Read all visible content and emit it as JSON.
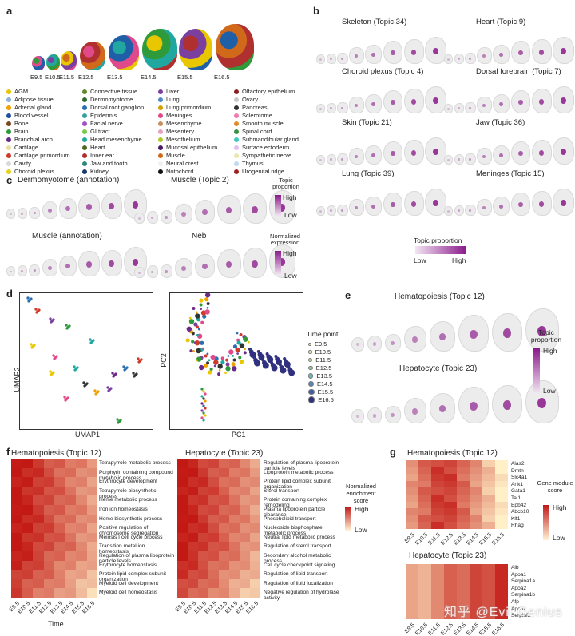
{
  "panels": {
    "a": "a",
    "b": "b",
    "c": "c",
    "d": "d",
    "e": "e",
    "f": "f",
    "g": "g"
  },
  "stages": [
    "E9.5",
    "E10.5",
    "E11.5",
    "E12.5",
    "E13.5",
    "E14.5",
    "E15.5",
    "E16.5"
  ],
  "tissue_legend": [
    {
      "label": "AGM",
      "color": "#e8c600"
    },
    {
      "label": "Connective tissue",
      "color": "#5c8a2e"
    },
    {
      "label": "Liver",
      "color": "#7b3fa0"
    },
    {
      "label": "Olfactory epithelium",
      "color": "#8b1e1e"
    },
    {
      "label": "Adipose tissue",
      "color": "#8ab3e0"
    },
    {
      "label": "Dermomyotome",
      "color": "#2e6b2e"
    },
    {
      "label": "Lung",
      "color": "#4e8ac8"
    },
    {
      "label": "Ovary",
      "color": "#c8c8c8"
    },
    {
      "label": "Adrenal gland",
      "color": "#f0a000"
    },
    {
      "label": "Dorsal root ganglion",
      "color": "#2a6fb0"
    },
    {
      "label": "Lung primordium",
      "color": "#d4a000"
    },
    {
      "label": "Pancreas",
      "color": "#333333"
    },
    {
      "label": "Blood vessel",
      "color": "#1f4fa0"
    },
    {
      "label": "Epidermis",
      "color": "#36a0a0"
    },
    {
      "label": "Meninges",
      "color": "#e04a8a"
    },
    {
      "label": "Sclerotome",
      "color": "#f07ab0"
    },
    {
      "label": "Bone",
      "color": "#7a4a1e"
    },
    {
      "label": "Facial nerve",
      "color": "#a050c8"
    },
    {
      "label": "Mesenchyme",
      "color": "#c89060"
    },
    {
      "label": "Smooth muscle",
      "color": "#e08a2a"
    },
    {
      "label": "Brain",
      "color": "#2f9a3a"
    },
    {
      "label": "GI tract",
      "color": "#7ac84a"
    },
    {
      "label": "Mesentery",
      "color": "#e8a0c0"
    },
    {
      "label": "Spinal cord",
      "color": "#3a9040"
    },
    {
      "label": "Branchial arch",
      "color": "#6a2a8a"
    },
    {
      "label": "Head mesenchyme",
      "color": "#20a8a0"
    },
    {
      "label": "Mesothelium",
      "color": "#b0c830"
    },
    {
      "label": "Submandibular gland",
      "color": "#40c8c0"
    },
    {
      "label": "Cartilage",
      "color": "#e8e0a0"
    },
    {
      "label": "Heart",
      "color": "#4a6a20"
    },
    {
      "label": "Mucosal epithelium",
      "color": "#4a1a6a"
    },
    {
      "label": "Surface ectoderm",
      "color": "#e0c0f0"
    },
    {
      "label": "Cartilage primordium",
      "color": "#d03a2a"
    },
    {
      "label": "Inner ear",
      "color": "#b03030"
    },
    {
      "label": "Muscle",
      "color": "#d06a1a"
    },
    {
      "label": "Sympathetic nerve",
      "color": "#e8e8b0"
    },
    {
      "label": "Cavity",
      "color": "#d8d8d8"
    },
    {
      "label": "Jaw and tooth",
      "color": "#2a8a7a"
    },
    {
      "label": "Neural crest",
      "color": "#f0f0f0"
    },
    {
      "label": "Thymus",
      "color": "#c0d8f0"
    },
    {
      "label": "Choroid plexus",
      "color": "#e8d020"
    },
    {
      "label": "Kidney",
      "color": "#1a3a6a"
    },
    {
      "label": "Notochord",
      "color": "#111111"
    },
    {
      "label": "Urogenital ridge",
      "color": "#a02020"
    }
  ],
  "b_titles": [
    "Skeleton (Topic 34)",
    "Heart (Topic 9)",
    "Choroid plexus (Topic 4)",
    "Dorsal forebrain (Topic 7)",
    "Skin (Topic 21)",
    "Jaw (Topic 36)",
    "Lung (Topic 39)",
    "Meninges (Topic 15)"
  ],
  "b_legend": {
    "title": "Topic proportion",
    "low": "Low",
    "high": "High"
  },
  "c": {
    "t1": "Dermomyotome (annotation)",
    "t2": "Muscle (Topic 2)",
    "t3": "Muscle (annotation)",
    "t4": "Neb",
    "leg1_title": "Topic proportion",
    "leg1_high": "High",
    "leg1_low": "Low",
    "leg2_title": "Normalized expression",
    "leg2_high": "High",
    "leg2_low": "Low"
  },
  "d": {
    "xlabel1": "UMAP1",
    "ylabel1": "UMAP2",
    "xlabel2": "PC1",
    "ylabel2": "PC2",
    "legend_title": "Time point"
  },
  "e": {
    "t1": "Hematopoiesis (Topic 12)",
    "t2": "Hepatocyte (Topic 23)",
    "leg_title": "Topic proportion",
    "high": "High",
    "low": "Low"
  },
  "f": {
    "t1": "Hematopoiesis (Topic 12)",
    "t2": "Hepatocyte (Topic 23)",
    "rows1": [
      "Tetrapyrrole metabolic process",
      "Porphyrin containing compound metabolic process",
      "Erythrocyte development",
      "Tetrapyrrole biosynthetic process",
      "Heme metabolic process",
      "Iron ion homeostasis",
      "Heme biosynthetic process",
      "Positive regulation of chromosome segregation",
      "Meiosis I cell cycle process",
      "Transition metal ion homeostasis",
      "Regulation of plasma lipoprotein particle levels",
      "Erythrocyte homeostasis",
      "Protein lipid complex subunit organization",
      "Myeloid cell development",
      "Myeloid cell homeostasis"
    ],
    "rows2": [
      "Regulation of plasma lipoprotein particle levels",
      "Lipoprotein metabolic process",
      "Protein lipid complex subunit organization",
      "Sterol transport",
      "Protein containing complex remodeling",
      "Plasma lipoprotein particle clearance",
      "Phospholipid transport",
      "Nucleoside bisphosphate metabolic process",
      "Neutral lipid metabolic process",
      "Regulation of sterol transport",
      "Secondary alcohol metabolic process",
      "Cell cycle checkpoint signaling",
      "Regulation of lipid transport",
      "Regulation of lipid localization",
      "Negative regulation of hydrolase activity"
    ],
    "xlabel": "Time",
    "leg_title": "Normalized enrichment score",
    "high": "High",
    "low": "Low"
  },
  "g": {
    "t1": "Hematopoiesis (Topic 12)",
    "t2": "Hepatocyte (Topic 23)",
    "genes1": [
      "Alas2",
      "Dmtn",
      "Slc4a1",
      "Ank1",
      "Gata1",
      "Tal1",
      "Epb42",
      "Abcb10",
      "Klf1",
      "Rhag"
    ],
    "genes2": [
      "Alb",
      "Apoa1",
      "Serpina1a",
      "Apoa2",
      "Serpina1b",
      "Afp",
      "Apom",
      "Serpinf2"
    ],
    "leg_title": "Gene module score",
    "high": "High",
    "low": "Low"
  },
  "watermark": "知乎 @Evil Genius"
}
